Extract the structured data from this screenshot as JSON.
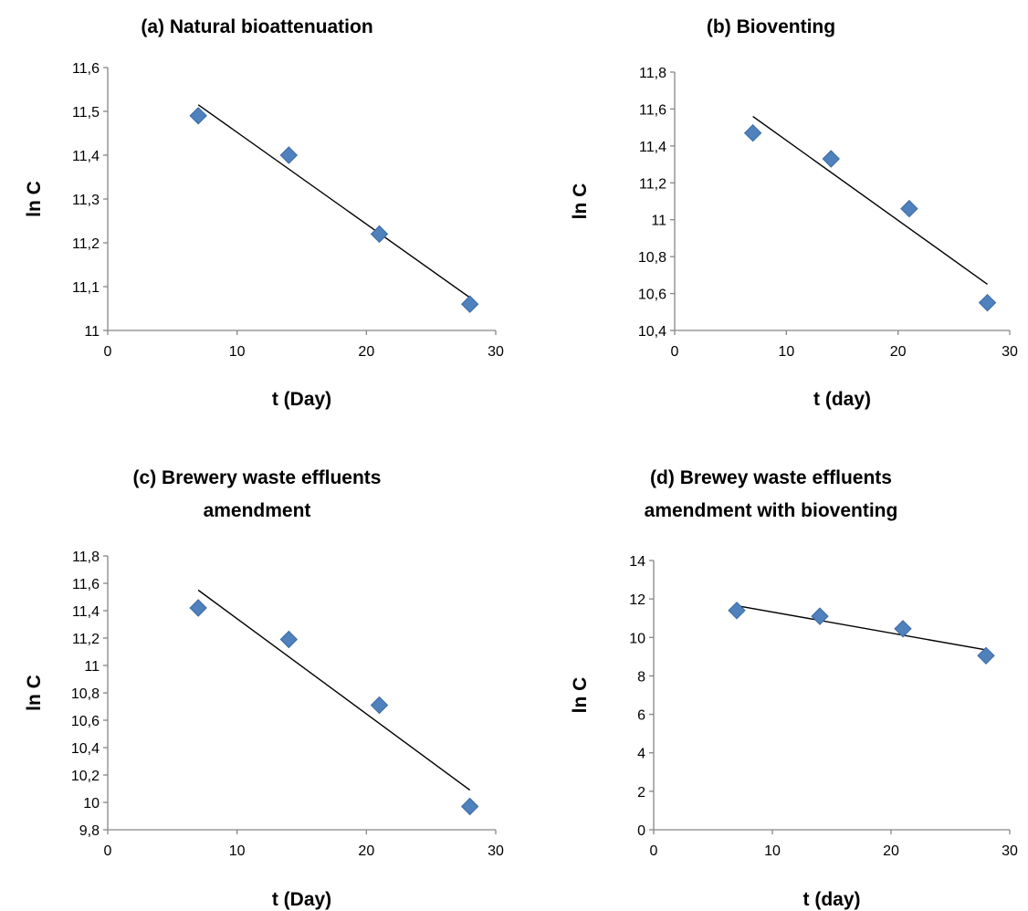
{
  "chart_data": [
    {
      "type": "scatter",
      "title": [
        "(a) Natural bioattenuation"
      ],
      "xlabel": "t (Day)",
      "ylabel": "ln C",
      "xlim": [
        0,
        30
      ],
      "ylim": [
        11,
        11.6
      ],
      "xticks": [
        "0",
        "10",
        "20",
        "30"
      ],
      "yticks": [
        "11",
        "11,1",
        "11,2",
        "11,3",
        "11,4",
        "11,5",
        "11,6"
      ],
      "x": [
        7,
        14,
        21,
        28
      ],
      "y": [
        11.49,
        11.4,
        11.22,
        11.06
      ],
      "trendline": {
        "x": [
          7,
          28
        ],
        "y": [
          11.515,
          11.075
        ]
      },
      "marker_color": "#4F81BD",
      "grid": false
    },
    {
      "type": "scatter",
      "title": [
        "(b) Bioventing"
      ],
      "xlabel": "t (day)",
      "ylabel": "ln C",
      "xlim": [
        0,
        30
      ],
      "ylim": [
        10.4,
        11.8
      ],
      "xticks": [
        "0",
        "10",
        "20",
        "30"
      ],
      "yticks": [
        "10,4",
        "10,6",
        "10,8",
        "11",
        "11,2",
        "11,4",
        "11,6",
        "11,8"
      ],
      "x": [
        7,
        14,
        21,
        28
      ],
      "y": [
        11.47,
        11.33,
        11.06,
        10.55
      ],
      "trendline": {
        "x": [
          7,
          28
        ],
        "y": [
          11.56,
          10.65
        ]
      },
      "marker_color": "#4F81BD",
      "grid": false
    },
    {
      "type": "scatter",
      "title": [
        "(c) Brewery waste effluents",
        "amendment"
      ],
      "xlabel": "t (Day)",
      "ylabel": "ln C",
      "xlim": [
        0,
        30
      ],
      "ylim": [
        9.8,
        11.8
      ],
      "xticks": [
        "0",
        "10",
        "20",
        "30"
      ],
      "yticks": [
        "9,8",
        "10",
        "10,2",
        "10,4",
        "10,6",
        "10,8",
        "11",
        "11,2",
        "11,4",
        "11,6",
        "11,8"
      ],
      "x": [
        7,
        14,
        21,
        28
      ],
      "y": [
        11.42,
        11.19,
        10.71,
        9.97
      ],
      "trendline": {
        "x": [
          7,
          28
        ],
        "y": [
          11.55,
          10.09
        ]
      },
      "marker_color": "#4F81BD",
      "grid": false
    },
    {
      "type": "scatter",
      "title": [
        "(d) Brewey waste effluents",
        "amendment with bioventing"
      ],
      "xlabel": "t (day)",
      "ylabel": "ln C",
      "xlim": [
        0,
        30
      ],
      "ylim": [
        0,
        14
      ],
      "xticks": [
        "0",
        "10",
        "20",
        "30"
      ],
      "yticks": [
        "0",
        "2",
        "4",
        "6",
        "8",
        "10",
        "12",
        "14"
      ],
      "x": [
        7,
        14,
        21,
        28
      ],
      "y": [
        11.4,
        11.1,
        10.45,
        9.05
      ],
      "trendline": {
        "x": [
          7,
          28
        ],
        "y": [
          11.65,
          9.35
        ]
      },
      "marker_color": "#4F81BD",
      "grid": false
    }
  ]
}
